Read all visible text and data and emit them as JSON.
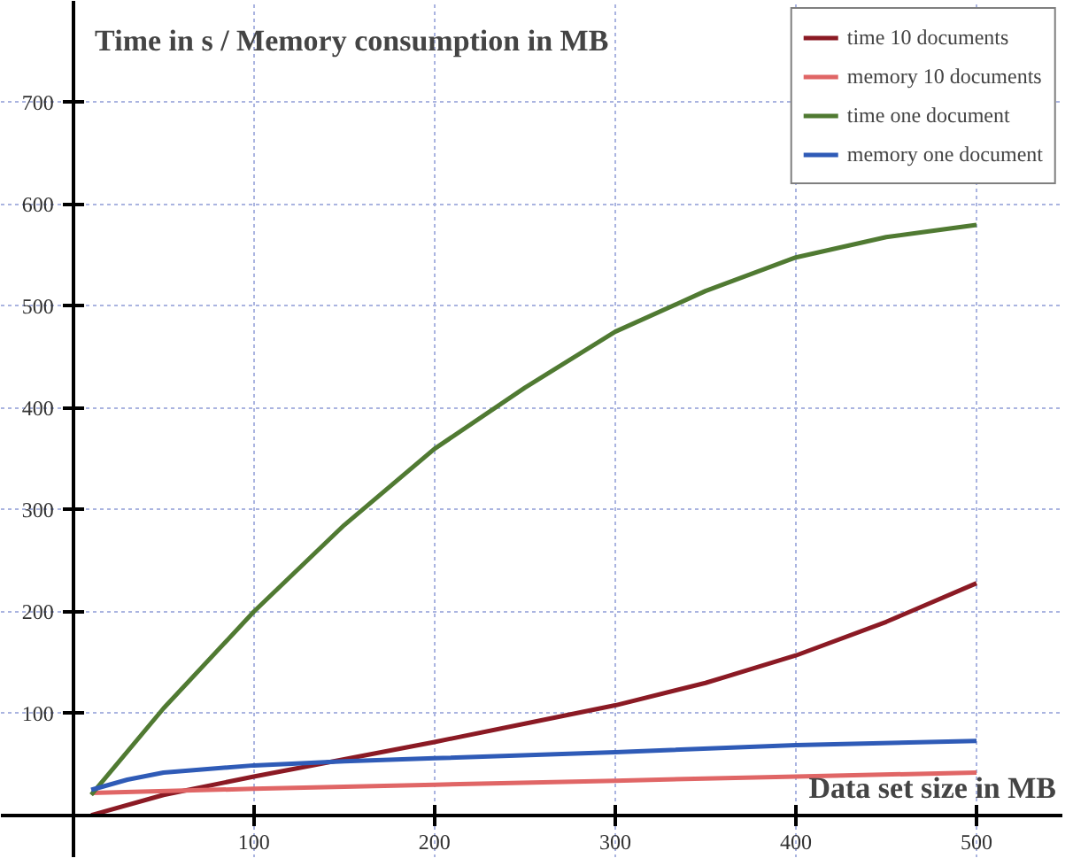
{
  "chart_data": {
    "type": "line",
    "ylabel": "Time in s / Memory consumption in MB",
    "xlabel": "Data set size in MB",
    "xlim": [
      -40,
      548
    ],
    "ylim": [
      -42,
      800
    ],
    "xticks": [
      100,
      200,
      300,
      400,
      500
    ],
    "yticks": [
      100,
      200,
      300,
      400,
      500,
      600,
      700
    ],
    "grid": true,
    "legend": "top right",
    "marker": "none",
    "line_style": "solid",
    "series": [
      {
        "name": "time 10 documents",
        "color": "#8b1a24",
        "x": [
          10,
          50,
          100,
          150,
          200,
          250,
          300,
          350,
          400,
          450,
          500
        ],
        "values": [
          0,
          20,
          38,
          55,
          72,
          90,
          108,
          130,
          157,
          190,
          228
        ]
      },
      {
        "name": "memory 10 documents",
        "color": "#e06666",
        "x": [
          10,
          100,
          200,
          300,
          400,
          500
        ],
        "values": [
          22,
          26,
          30,
          34,
          38,
          42
        ]
      },
      {
        "name": "time one document",
        "color": "#507a32",
        "x": [
          10,
          50,
          100,
          150,
          200,
          250,
          300,
          350,
          400,
          450,
          500
        ],
        "values": [
          20,
          105,
          200,
          285,
          360,
          420,
          475,
          515,
          548,
          568,
          580
        ]
      },
      {
        "name": "memory one document",
        "color": "#2f5bb7",
        "x": [
          10,
          30,
          50,
          100,
          150,
          200,
          300,
          400,
          500
        ],
        "values": [
          25,
          35,
          42,
          49,
          53,
          56,
          62,
          69,
          73
        ]
      }
    ]
  }
}
